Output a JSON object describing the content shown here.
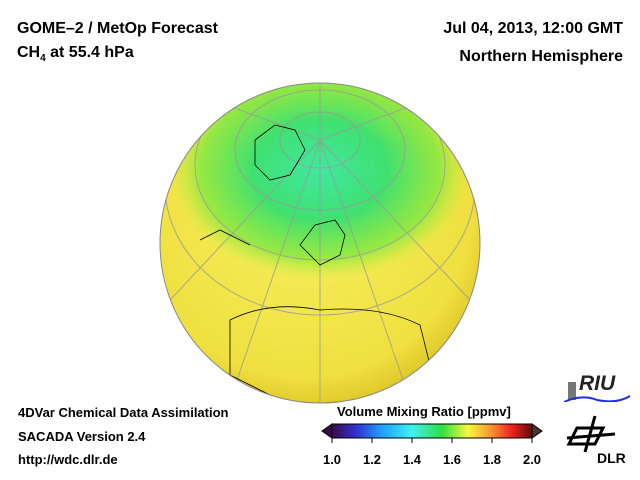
{
  "header": {
    "title": "GOME–2 / MetOp Forecast",
    "species": "CH",
    "species_sub": "4",
    "level": " at 55.4 hPa",
    "datetime": "Jul 04, 2013, 12:00 GMT",
    "region": "Northern Hemisphere"
  },
  "footer": {
    "line1": "4DVar Chemical Data Assimilation",
    "line2": "SACADA Version 2.4",
    "url": "http://wdc.dlr.de"
  },
  "colorbar": {
    "title": "Volume Mixing Ratio [ppmv]",
    "ticks": [
      "1.0",
      "1.2",
      "1.4",
      "1.6",
      "1.8",
      "2.0"
    ],
    "min": 1.0,
    "max": 2.0,
    "colors": [
      "#3a0a4a",
      "#3030d0",
      "#20a0ff",
      "#40f0f0",
      "#30e040",
      "#f8f840",
      "#f89030",
      "#f02020",
      "#600a0a"
    ]
  },
  "logos": {
    "riu": "RIU",
    "dlr": "DLR"
  }
}
